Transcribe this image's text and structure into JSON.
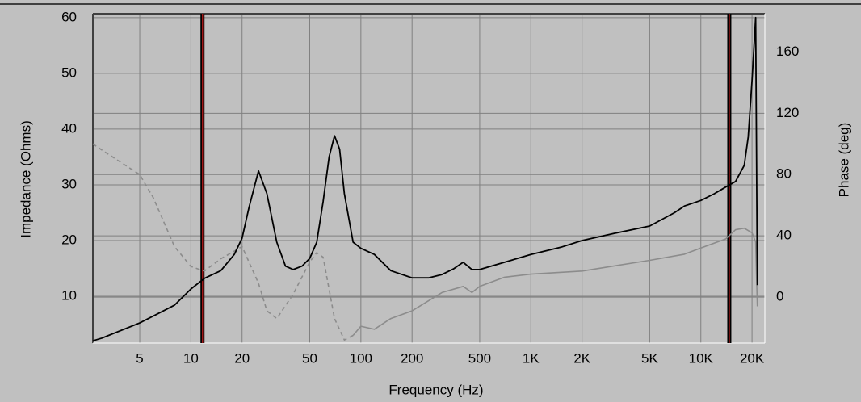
{
  "chart_data": {
    "type": "line",
    "x_label": "Frequency (Hz)",
    "y_label": "Impedance (Ohms)",
    "y2_label": "Phase (deg)",
    "xscale": "log",
    "grid": true,
    "xlim": [
      2.65,
      23800
    ],
    "xticks": [
      5,
      10,
      20,
      50,
      100,
      200,
      500,
      {
        "value": 1000,
        "label": "1K"
      },
      {
        "value": 2000,
        "label": "2K"
      },
      {
        "value": 5000,
        "label": "5K"
      },
      {
        "value": 10000,
        "label": "10K"
      },
      {
        "value": 20000,
        "label": "20K"
      }
    ],
    "ylim": [
      1.6,
      60.7
    ],
    "yticks": [
      10,
      20,
      30,
      40,
      50,
      60
    ],
    "y2lim": [
      -30,
      185
    ],
    "y2ticks": [
      0,
      40,
      80,
      120,
      160
    ],
    "markers": [
      {
        "x": 11.7,
        "color": "#a01818"
      },
      {
        "x": 14700,
        "color": "#a01818"
      }
    ],
    "series": [
      {
        "color": "#000000",
        "style": "solid",
        "x": [
          2.65,
          3,
          5,
          8,
          10,
          12,
          15,
          18,
          20,
          22,
          25,
          28,
          32,
          36,
          40,
          45,
          50,
          55,
          60,
          65,
          70,
          75,
          80,
          90,
          100,
          120,
          150,
          200,
          250,
          300,
          350,
          400,
          450,
          500,
          700,
          1000,
          1500,
          2000,
          3000,
          5000,
          7000,
          8000,
          10000,
          12000,
          14000,
          16000,
          18000,
          19000,
          20000,
          21000,
          21500
        ],
        "values": [
          2.0,
          2.5,
          5.2,
          8.4,
          11.3,
          13.2,
          14.6,
          17.5,
          20.4,
          26,
          32.5,
          28.4,
          19.7,
          15.4,
          14.8,
          15.4,
          16.8,
          19.7,
          27,
          35,
          38.8,
          36.4,
          28.4,
          19.7,
          18.6,
          17.5,
          14.6,
          13.3,
          13.3,
          13.9,
          14.9,
          16.1,
          14.8,
          14.8,
          16.1,
          17.5,
          18.8,
          20,
          21.2,
          22.6,
          25,
          26.2,
          27.2,
          28.4,
          29.6,
          30.6,
          33.5,
          38.6,
          48.7,
          60,
          12
        ]
      },
      {
        "color": "#8c8c8c",
        "style": "dashed",
        "axis": "y2",
        "x": [
          2.65,
          3,
          5,
          6,
          8,
          10,
          12,
          15,
          18,
          20,
          25,
          28,
          32,
          40,
          50,
          55,
          60,
          70,
          80,
          90
        ],
        "values": [
          100,
          96,
          80,
          65,
          33,
          20,
          17,
          25,
          30,
          33,
          9,
          -9,
          -14,
          2,
          23,
          29,
          26,
          -14,
          -28,
          -25
        ]
      },
      {
        "color": "#8c8c8c",
        "style": "solid",
        "axis": "y2",
        "x": [
          90,
          100,
          120,
          150,
          200,
          300,
          400,
          450,
          500,
          700,
          1000,
          2000,
          5000,
          8000,
          10000,
          14000,
          16000,
          18000,
          20000,
          21000,
          21500
        ],
        "values": [
          -25,
          -19,
          -21,
          -14,
          -9,
          3,
          7,
          3,
          7,
          13,
          15,
          17,
          24,
          28,
          32,
          38,
          44,
          45,
          42,
          36,
          -6
        ]
      }
    ]
  }
}
